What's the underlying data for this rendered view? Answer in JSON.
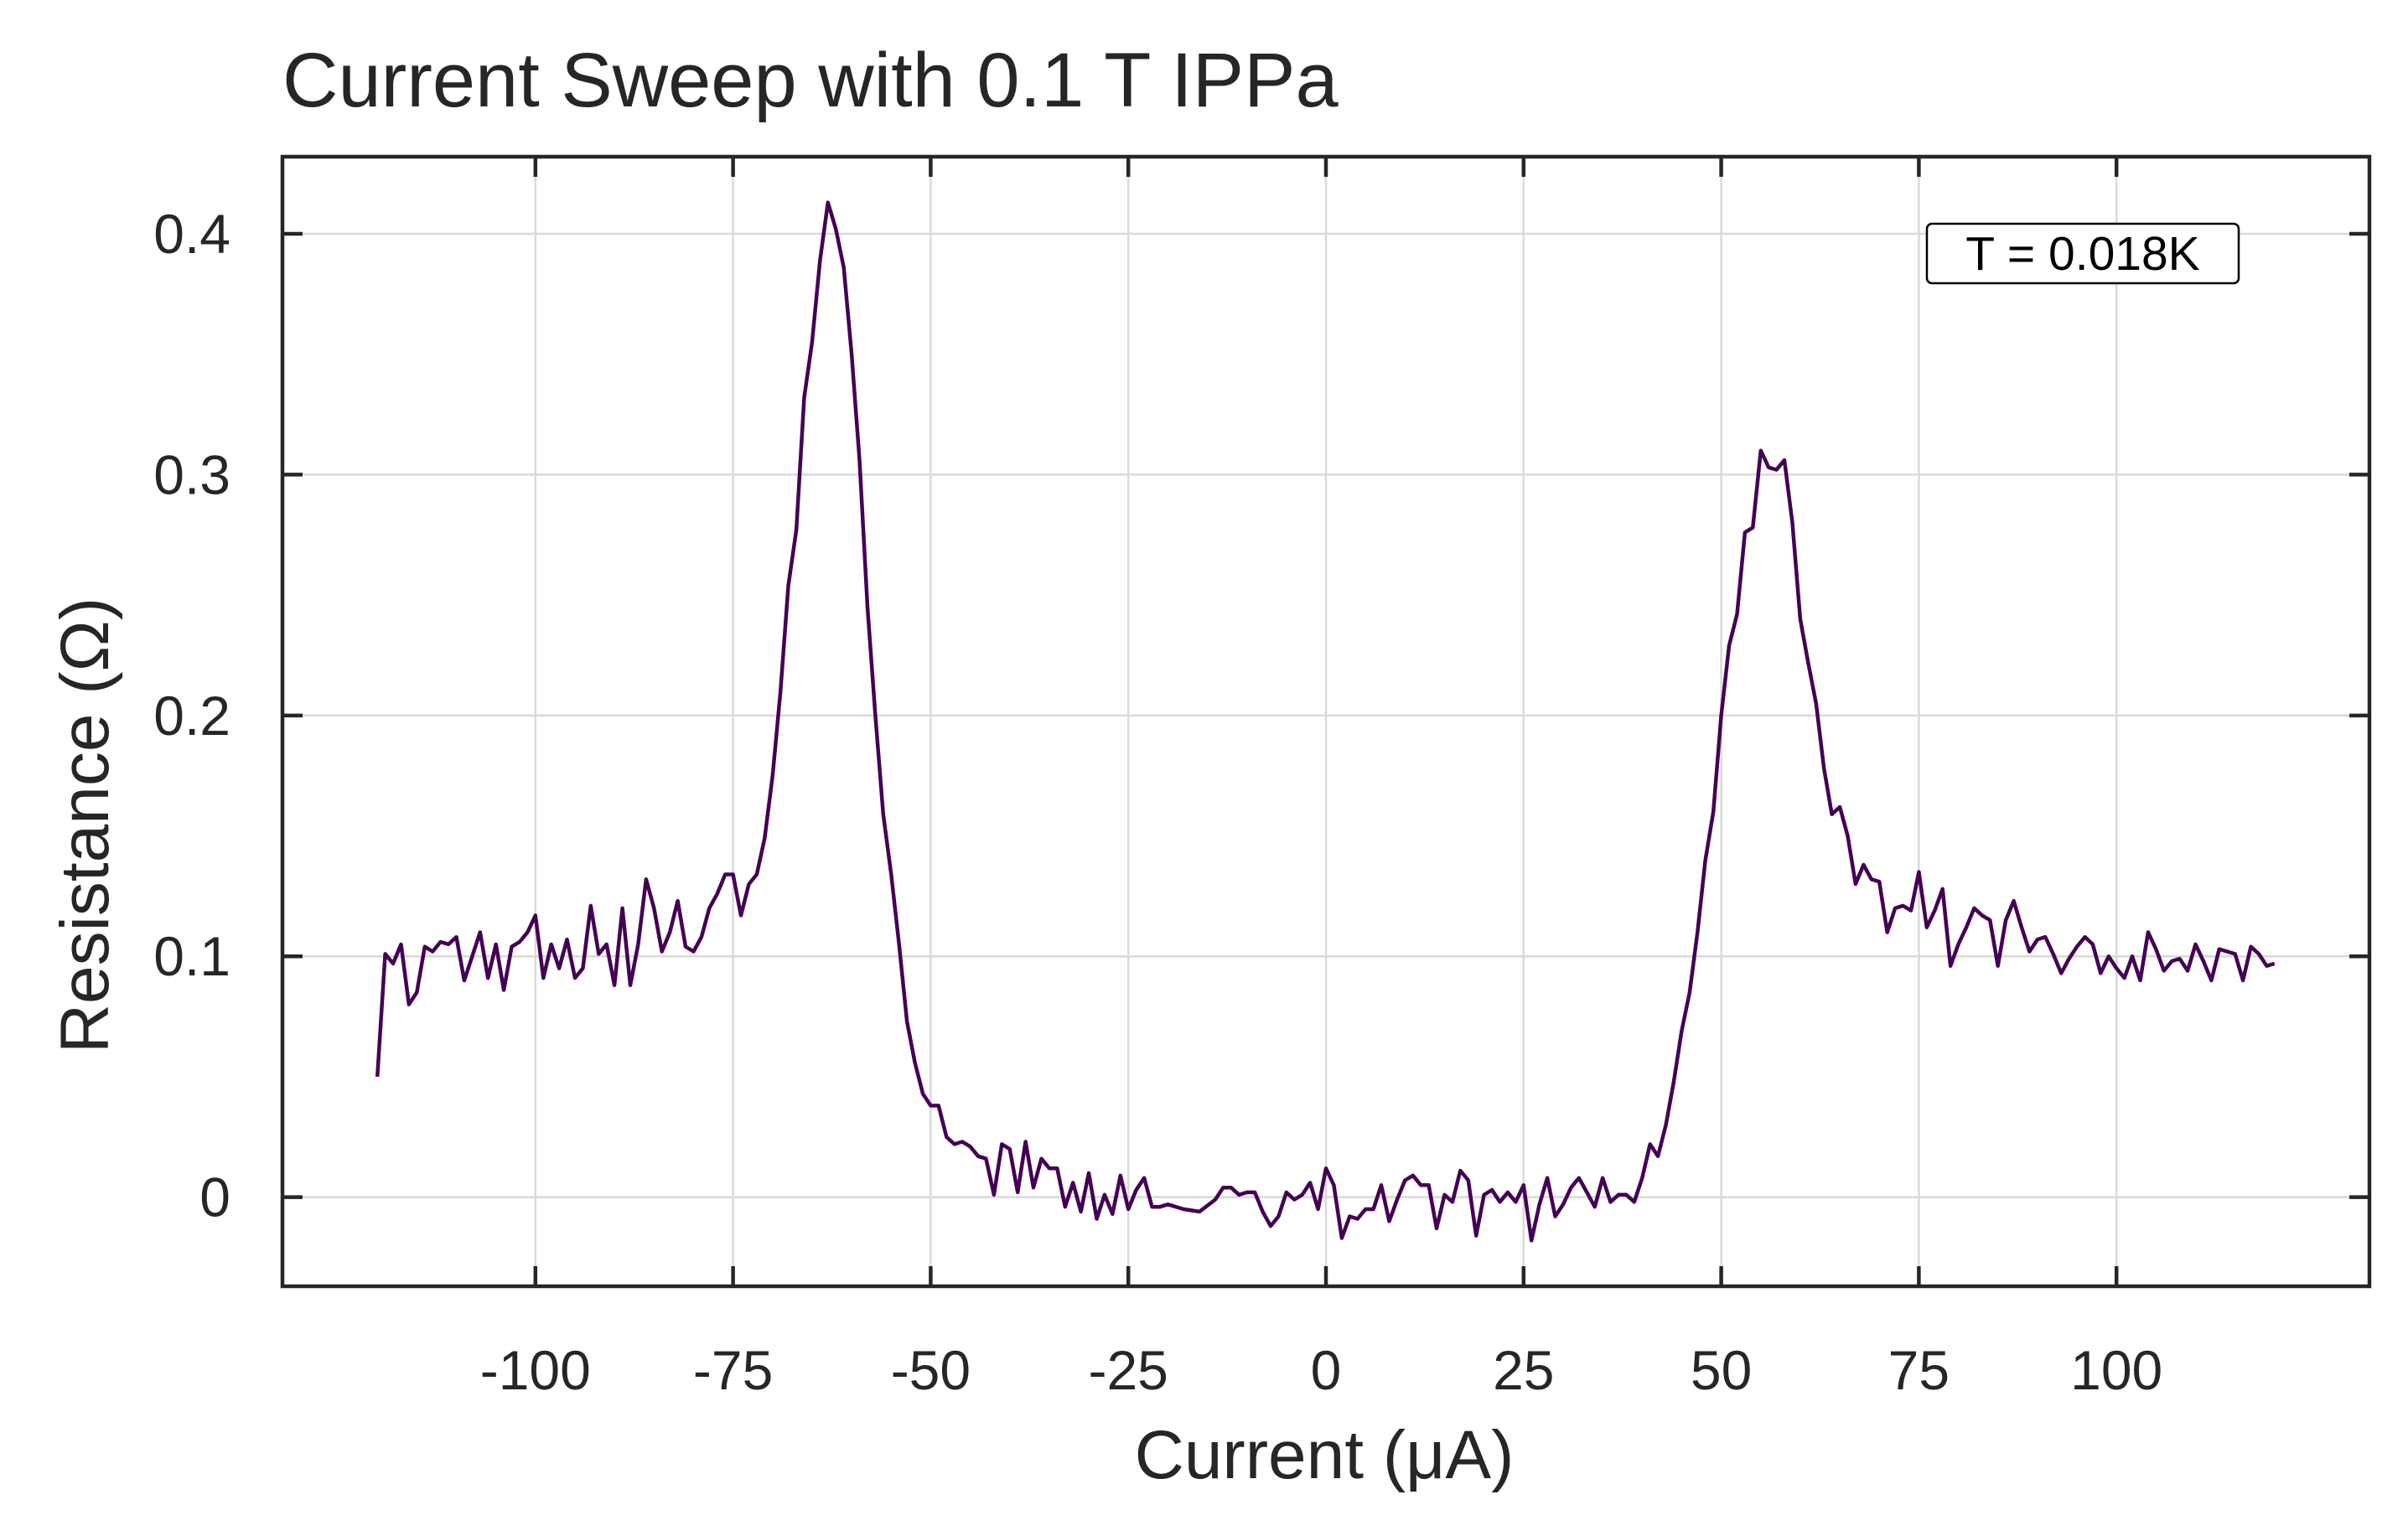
{
  "chart_data": {
    "type": "line",
    "title": "Current Sweep with 0.1 T IPPa",
    "xlabel": "Current (μA)",
    "ylabel": "Resistance (Ω)",
    "annotation": "T = 0.018K",
    "xlim": [
      -132,
      132
    ],
    "ylim": [
      -0.037,
      0.432
    ],
    "xticks": [
      -100,
      -75,
      -50,
      -25,
      0,
      25,
      50,
      75,
      100
    ],
    "xtick_labels": [
      "-100",
      "-75",
      "-50",
      "-25",
      "0",
      "25",
      "50",
      "75",
      "100"
    ],
    "yticks": [
      0,
      0.1,
      0.2,
      0.3,
      0.4
    ],
    "ytick_labels": [
      "0",
      "0.1",
      "0.2",
      "0.3",
      "0.4"
    ],
    "grid": true,
    "line_color": "#440154",
    "series": [
      {
        "x": [
          -120,
          -119,
          -118,
          -117,
          -116,
          -115,
          -114,
          -113,
          -112,
          -111,
          -110,
          -109,
          -108,
          -107,
          -106,
          -105,
          -104,
          -103,
          -102,
          -101,
          -100,
          -99,
          -98,
          -97,
          -96,
          -95,
          -94,
          -93,
          -92,
          -91,
          -90,
          -89,
          -88,
          -87,
          -86,
          -85,
          -84,
          -83,
          -82,
          -81,
          -80,
          -79,
          -78,
          -77,
          -76,
          -75,
          -74,
          -73,
          -72,
          -71,
          -70,
          -69,
          -68,
          -67,
          -66,
          -65,
          -64,
          -63,
          -62,
          -61,
          -60,
          -59,
          -58,
          -57,
          -56,
          -55,
          -54,
          -53,
          -52,
          -51,
          -50,
          -49,
          -48,
          -47,
          -46,
          -45,
          -44,
          -43,
          -42,
          -41,
          -40,
          -39,
          -38,
          -37,
          -36,
          -35,
          -34,
          -33,
          -32,
          -31,
          -30,
          -29,
          -28,
          -27,
          -26,
          -25,
          -24,
          -23,
          -22,
          -21,
          -20,
          -18,
          -16,
          -14,
          -13,
          -12,
          -11,
          -10,
          -9,
          -8,
          -7,
          -6,
          -5,
          -4,
          -3,
          -2,
          -1,
          0,
          1,
          2,
          3,
          4,
          5,
          6,
          7,
          8,
          9,
          10,
          11,
          12,
          13,
          14,
          15,
          16,
          17,
          18,
          19,
          20,
          21,
          22,
          23,
          24,
          25,
          26,
          27,
          28,
          29,
          30,
          31,
          32,
          33,
          34,
          35,
          36,
          37,
          38,
          39,
          40,
          41,
          42,
          43,
          44,
          45,
          46,
          47,
          48,
          49,
          50,
          51,
          52,
          53,
          54,
          55,
          56,
          57,
          58,
          59,
          60,
          61,
          62,
          63,
          64,
          65,
          66,
          67,
          68,
          69,
          70,
          71,
          72,
          73,
          74,
          75,
          76,
          77,
          78,
          79,
          80,
          81,
          82,
          83,
          84,
          85,
          86,
          87,
          88,
          89,
          90,
          91,
          92,
          93,
          94,
          95,
          96,
          97,
          98,
          99,
          100,
          101,
          102,
          103,
          104,
          105,
          106,
          107,
          108,
          109,
          110,
          111,
          112,
          113,
          114,
          115,
          116,
          117,
          118,
          119,
          120
        ],
        "y": [
          0.05,
          0.101,
          0.097,
          0.105,
          0.08,
          0.085,
          0.104,
          0.102,
          0.106,
          0.105,
          0.108,
          0.09,
          0.1,
          0.11,
          0.091,
          0.105,
          0.086,
          0.104,
          0.106,
          0.11,
          0.117,
          0.091,
          0.105,
          0.095,
          0.107,
          0.091,
          0.095,
          0.121,
          0.101,
          0.105,
          0.088,
          0.12,
          0.088,
          0.105,
          0.132,
          0.12,
          0.102,
          0.11,
          0.123,
          0.104,
          0.102,
          0.108,
          0.12,
          0.126,
          0.134,
          0.134,
          0.117,
          0.13,
          0.134,
          0.149,
          0.175,
          0.21,
          0.254,
          0.277,
          0.332,
          0.355,
          0.389,
          0.413,
          0.402,
          0.386,
          0.35,
          0.306,
          0.245,
          0.2,
          0.159,
          0.134,
          0.105,
          0.073,
          0.056,
          0.043,
          0.038,
          0.038,
          0.025,
          0.022,
          0.023,
          0.021,
          0.017,
          0.016,
          0.001,
          0.022,
          0.02,
          0.002,
          0.023,
          0.004,
          0.016,
          0.012,
          0.012,
          -0.004,
          0.006,
          -0.006,
          0.01,
          -0.009,
          0.001,
          -0.007,
          0.009,
          -0.005,
          0.003,
          0.008,
          -0.004,
          -0.004,
          -0.003,
          -0.005,
          -0.006,
          -0.001,
          0.004,
          0.004,
          0.001,
          0.002,
          0.002,
          -0.006,
          -0.012,
          -0.008,
          0.002,
          -0.001,
          0.001,
          0.006,
          -0.005,
          0.012,
          0.005,
          -0.017,
          -0.008,
          -0.009,
          -0.005,
          -0.005,
          0.005,
          -0.01,
          -0.001,
          0.007,
          0.009,
          0.005,
          0.005,
          -0.013,
          0.001,
          -0.002,
          0.011,
          0.007,
          -0.016,
          0.001,
          0.003,
          -0.002,
          0.002,
          -0.002,
          0.005,
          -0.018,
          -0.003,
          0.008,
          -0.008,
          -0.003,
          0.004,
          0.008,
          0.002,
          -0.004,
          0.008,
          -0.002,
          0.001,
          0.001,
          -0.002,
          0.008,
          0.022,
          0.017,
          0.03,
          0.048,
          0.069,
          0.085,
          0.11,
          0.14,
          0.16,
          0.2,
          0.229,
          0.242,
          0.276,
          0.278,
          0.31,
          0.303,
          0.302,
          0.306,
          0.28,
          0.24,
          0.222,
          0.205,
          0.178,
          0.159,
          0.162,
          0.15,
          0.13,
          0.138,
          0.132,
          0.131,
          0.11,
          0.12,
          0.121,
          0.119,
          0.135,
          0.112,
          0.119,
          0.128,
          0.096,
          0.105,
          0.112,
          0.12,
          0.117,
          0.115,
          0.096,
          0.115,
          0.123,
          0.112,
          0.102,
          0.107,
          0.108,
          0.101,
          0.093,
          0.099,
          0.104,
          0.108,
          0.105,
          0.093,
          0.1,
          0.095,
          0.091,
          0.1,
          0.09,
          0.11,
          0.103,
          0.094,
          0.098,
          0.099,
          0.094,
          0.105,
          0.098,
          0.09,
          0.103,
          0.102,
          0.101,
          0.09,
          0.104,
          0.101,
          0.096,
          0.097
        ]
      }
    ]
  }
}
